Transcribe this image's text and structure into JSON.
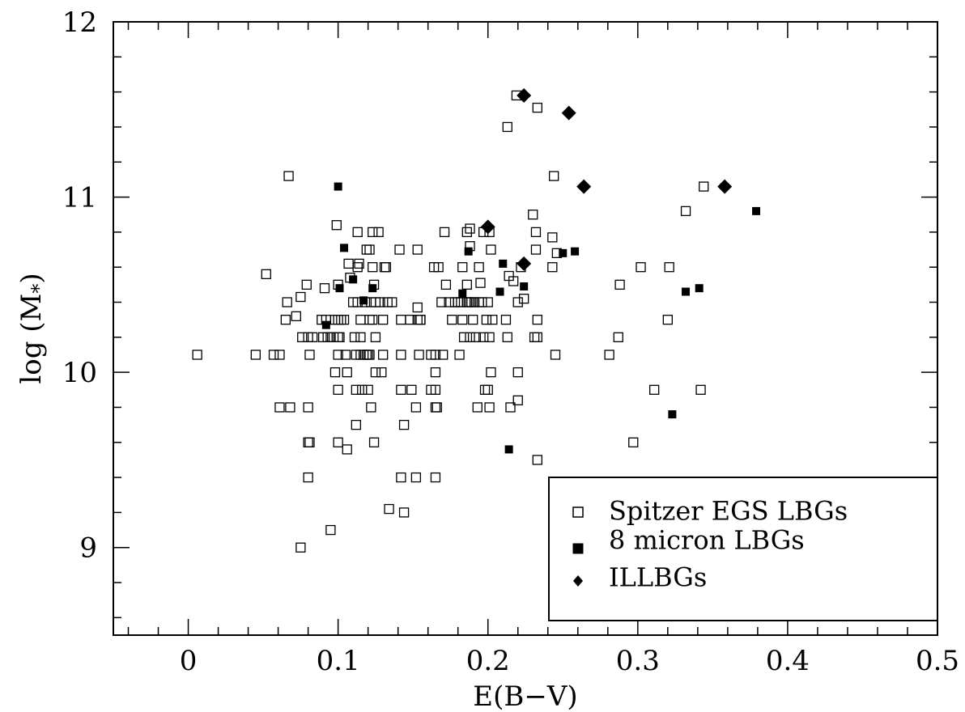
{
  "chart_data": {
    "type": "scatter",
    "xlabel": "E(B−V)",
    "ylabel_main": "log (M",
    "ylabel_sub": "*",
    "ylabel_close": ")",
    "xlim": [
      -0.05,
      0.5
    ],
    "ylim": [
      8.5,
      12.0
    ],
    "x_ticks": [
      0,
      0.1,
      0.2,
      0.3,
      0.4,
      0.5
    ],
    "x_tick_labels": [
      "0",
      "0.1",
      "0.2",
      "0.3",
      "0.4",
      "0.5"
    ],
    "y_ticks": [
      9,
      10,
      11,
      12
    ],
    "y_tick_labels": [
      "9",
      "10",
      "11",
      "12"
    ],
    "legend_position": "bottom-right",
    "series": [
      {
        "name": "Spitzer EGS LBGs",
        "marker": "open-square",
        "points": [
          [
            0.006,
            10.1
          ],
          [
            0.045,
            10.1
          ],
          [
            0.052,
            10.56
          ],
          [
            0.057,
            10.1
          ],
          [
            0.061,
            10.1
          ],
          [
            0.061,
            9.8
          ],
          [
            0.065,
            10.3
          ],
          [
            0.066,
            10.4
          ],
          [
            0.067,
            11.12
          ],
          [
            0.068,
            9.8
          ],
          [
            0.072,
            10.32
          ],
          [
            0.075,
            10.43
          ],
          [
            0.075,
            9.0
          ],
          [
            0.076,
            10.2
          ],
          [
            0.079,
            10.5
          ],
          [
            0.08,
            10.2
          ],
          [
            0.08,
            9.8
          ],
          [
            0.08,
            9.6
          ],
          [
            0.081,
            9.6
          ],
          [
            0.08,
            9.4
          ],
          [
            0.081,
            10.1
          ],
          [
            0.083,
            10.2
          ],
          [
            0.089,
            10.3
          ],
          [
            0.09,
            10.2
          ],
          [
            0.091,
            10.48
          ],
          [
            0.092,
            10.3
          ],
          [
            0.093,
            10.2
          ],
          [
            0.095,
            10.2
          ],
          [
            0.095,
            9.1
          ],
          [
            0.097,
            10.2
          ],
          [
            0.098,
            10.3
          ],
          [
            0.098,
            10.0
          ],
          [
            0.099,
            10.84
          ],
          [
            0.1,
            10.5
          ],
          [
            0.1,
            10.3
          ],
          [
            0.1,
            10.2
          ],
          [
            0.1,
            10.1
          ],
          [
            0.1,
            9.9
          ],
          [
            0.1,
            9.6
          ],
          [
            0.101,
            10.2
          ],
          [
            0.102,
            10.3
          ],
          [
            0.104,
            10.3
          ],
          [
            0.105,
            10.1
          ],
          [
            0.106,
            10.0
          ],
          [
            0.106,
            9.56
          ],
          [
            0.107,
            10.62
          ],
          [
            0.108,
            10.54
          ],
          [
            0.11,
            10.4
          ],
          [
            0.111,
            10.2
          ],
          [
            0.112,
            10.1
          ],
          [
            0.112,
            9.9
          ],
          [
            0.112,
            9.7
          ],
          [
            0.113,
            10.6
          ],
          [
            0.113,
            10.4
          ],
          [
            0.113,
            10.8
          ],
          [
            0.114,
            10.62
          ],
          [
            0.115,
            10.3
          ],
          [
            0.115,
            10.2
          ],
          [
            0.115,
            10.1
          ],
          [
            0.116,
            9.9
          ],
          [
            0.117,
            10.1
          ],
          [
            0.118,
            10.4
          ],
          [
            0.119,
            10.1
          ],
          [
            0.119,
            10.7
          ],
          [
            0.12,
            10.1
          ],
          [
            0.12,
            9.9
          ],
          [
            0.121,
            10.7
          ],
          [
            0.121,
            10.3
          ],
          [
            0.121,
            10.1
          ],
          [
            0.122,
            9.8
          ],
          [
            0.122,
            10.4
          ],
          [
            0.123,
            10.6
          ],
          [
            0.123,
            10.3
          ],
          [
            0.123,
            10.8
          ],
          [
            0.124,
            10.5
          ],
          [
            0.124,
            9.6
          ],
          [
            0.125,
            10.4
          ],
          [
            0.125,
            10.2
          ],
          [
            0.125,
            10.0
          ],
          [
            0.127,
            10.8
          ],
          [
            0.128,
            10.4
          ],
          [
            0.129,
            10.0
          ],
          [
            0.13,
            10.1
          ],
          [
            0.13,
            10.3
          ],
          [
            0.131,
            10.6
          ],
          [
            0.132,
            10.6
          ],
          [
            0.133,
            10.4
          ],
          [
            0.134,
            9.22
          ],
          [
            0.136,
            10.4
          ],
          [
            0.141,
            10.7
          ],
          [
            0.142,
            10.3
          ],
          [
            0.142,
            10.1
          ],
          [
            0.142,
            9.9
          ],
          [
            0.142,
            9.4
          ],
          [
            0.144,
            9.7
          ],
          [
            0.144,
            9.2
          ],
          [
            0.148,
            10.3
          ],
          [
            0.149,
            9.9
          ],
          [
            0.152,
            9.8
          ],
          [
            0.152,
            9.4
          ],
          [
            0.153,
            10.37
          ],
          [
            0.153,
            10.3
          ],
          [
            0.153,
            10.7
          ],
          [
            0.154,
            10.1
          ],
          [
            0.155,
            10.3
          ],
          [
            0.155,
            10.3
          ],
          [
            0.162,
            9.9
          ],
          [
            0.162,
            10.1
          ],
          [
            0.164,
            10.6
          ],
          [
            0.165,
            10.0
          ],
          [
            0.165,
            9.9
          ],
          [
            0.165,
            9.8
          ],
          [
            0.165,
            9.4
          ],
          [
            0.165,
            10.1
          ],
          [
            0.166,
            9.8
          ],
          [
            0.167,
            10.6
          ],
          [
            0.169,
            10.4
          ],
          [
            0.17,
            10.1
          ],
          [
            0.171,
            10.8
          ],
          [
            0.172,
            10.5
          ],
          [
            0.174,
            10.4
          ],
          [
            0.176,
            10.3
          ],
          [
            0.178,
            10.4
          ],
          [
            0.18,
            10.4
          ],
          [
            0.181,
            10.1
          ],
          [
            0.182,
            10.4
          ],
          [
            0.183,
            10.3
          ],
          [
            0.183,
            10.6
          ],
          [
            0.184,
            10.2
          ],
          [
            0.186,
            10.4
          ],
          [
            0.186,
            10.5
          ],
          [
            0.186,
            10.8
          ],
          [
            0.187,
            10.4
          ],
          [
            0.188,
            10.2
          ],
          [
            0.188,
            10.82
          ],
          [
            0.188,
            10.72
          ],
          [
            0.189,
            10.4
          ],
          [
            0.19,
            10.3
          ],
          [
            0.191,
            10.4
          ],
          [
            0.192,
            10.2
          ],
          [
            0.193,
            9.8
          ],
          [
            0.194,
            10.4
          ],
          [
            0.194,
            10.6
          ],
          [
            0.195,
            10.51
          ],
          [
            0.196,
            10.4
          ],
          [
            0.197,
            10.8
          ],
          [
            0.197,
            10.2
          ],
          [
            0.198,
            9.9
          ],
          [
            0.199,
            10.3
          ],
          [
            0.2,
            10.4
          ],
          [
            0.2,
            9.9
          ],
          [
            0.201,
            10.8
          ],
          [
            0.201,
            9.8
          ],
          [
            0.201,
            10.2
          ],
          [
            0.202,
            10.7
          ],
          [
            0.202,
            10.0
          ],
          [
            0.203,
            10.3
          ],
          [
            0.212,
            10.3
          ],
          [
            0.213,
            11.4
          ],
          [
            0.213,
            10.2
          ],
          [
            0.214,
            10.55
          ],
          [
            0.215,
            9.8
          ],
          [
            0.217,
            10.52
          ],
          [
            0.219,
            11.58
          ],
          [
            0.22,
            10.4
          ],
          [
            0.22,
            9.84
          ],
          [
            0.22,
            10.0
          ],
          [
            0.222,
            10.6
          ],
          [
            0.224,
            10.42
          ],
          [
            0.23,
            10.9
          ],
          [
            0.231,
            10.2
          ],
          [
            0.232,
            10.7
          ],
          [
            0.232,
            10.8
          ],
          [
            0.233,
            11.51
          ],
          [
            0.233,
            10.3
          ],
          [
            0.233,
            10.2
          ],
          [
            0.233,
            9.5
          ],
          [
            0.243,
            10.6
          ],
          [
            0.243,
            10.77
          ],
          [
            0.244,
            11.12
          ],
          [
            0.245,
            10.1
          ],
          [
            0.246,
            10.68
          ],
          [
            0.281,
            10.1
          ],
          [
            0.287,
            10.2
          ],
          [
            0.288,
            10.5
          ],
          [
            0.297,
            9.6
          ],
          [
            0.302,
            10.6
          ],
          [
            0.311,
            9.9
          ],
          [
            0.32,
            10.3
          ],
          [
            0.321,
            10.6
          ],
          [
            0.332,
            10.92
          ],
          [
            0.342,
            9.9
          ],
          [
            0.344,
            11.06
          ]
        ]
      },
      {
        "name": "8 micron LBGs",
        "marker": "filled-square",
        "points": [
          [
            0.092,
            10.27
          ],
          [
            0.1,
            11.06
          ],
          [
            0.101,
            10.48
          ],
          [
            0.104,
            10.71
          ],
          [
            0.11,
            10.53
          ],
          [
            0.117,
            10.41
          ],
          [
            0.123,
            10.48
          ],
          [
            0.183,
            10.45
          ],
          [
            0.187,
            10.69
          ],
          [
            0.208,
            10.46
          ],
          [
            0.21,
            10.62
          ],
          [
            0.214,
            9.56
          ],
          [
            0.224,
            10.49
          ],
          [
            0.25,
            10.68
          ],
          [
            0.258,
            10.69
          ],
          [
            0.323,
            9.76
          ],
          [
            0.332,
            10.46
          ],
          [
            0.341,
            10.48
          ],
          [
            0.379,
            10.92
          ]
        ]
      },
      {
        "name": "ILLBGs",
        "marker": "filled-diamond",
        "points": [
          [
            0.2,
            10.83
          ],
          [
            0.224,
            10.62
          ],
          [
            0.224,
            11.58
          ],
          [
            0.254,
            11.48
          ],
          [
            0.264,
            11.06
          ],
          [
            0.358,
            11.06
          ]
        ]
      }
    ]
  }
}
